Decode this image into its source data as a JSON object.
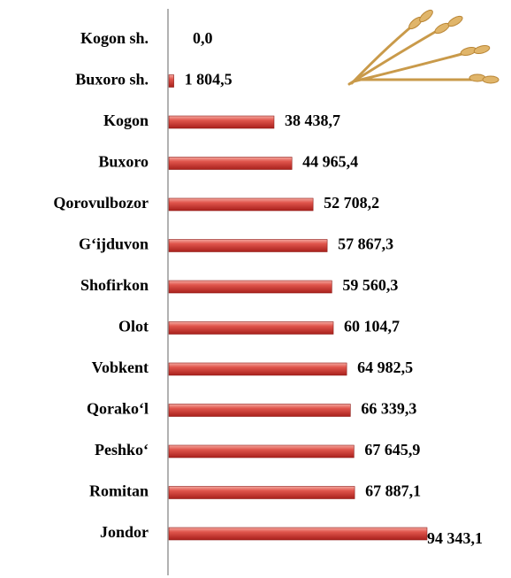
{
  "chart_data": {
    "type": "bar",
    "orientation": "horizontal",
    "color": "#d9403d",
    "categories": [
      "Kogon sh.",
      "Buxoro sh.",
      "Kogon",
      "Buxoro",
      "Qorovulbozor",
      "G‘ijduvon",
      "Shofirkon",
      "Olot",
      "Vobkent",
      "Qorako‘l",
      "Peshko‘",
      "Romitan",
      "Jondor"
    ],
    "values": [
      0.0,
      1804.5,
      38438.7,
      44965.4,
      52708.2,
      57867.3,
      59560.3,
      60104.7,
      64982.5,
      66339.3,
      67645.9,
      67887.1,
      94343.1
    ],
    "value_labels": [
      "0,0",
      "1 804,5",
      "38 438,7",
      "44 965,4",
      "52 708,2",
      "57 867,3",
      "59 560,3",
      "60 104,7",
      "64 982,5",
      "66 339,3",
      "67 645,9",
      "67 887,1",
      "94 343,1"
    ]
  }
}
